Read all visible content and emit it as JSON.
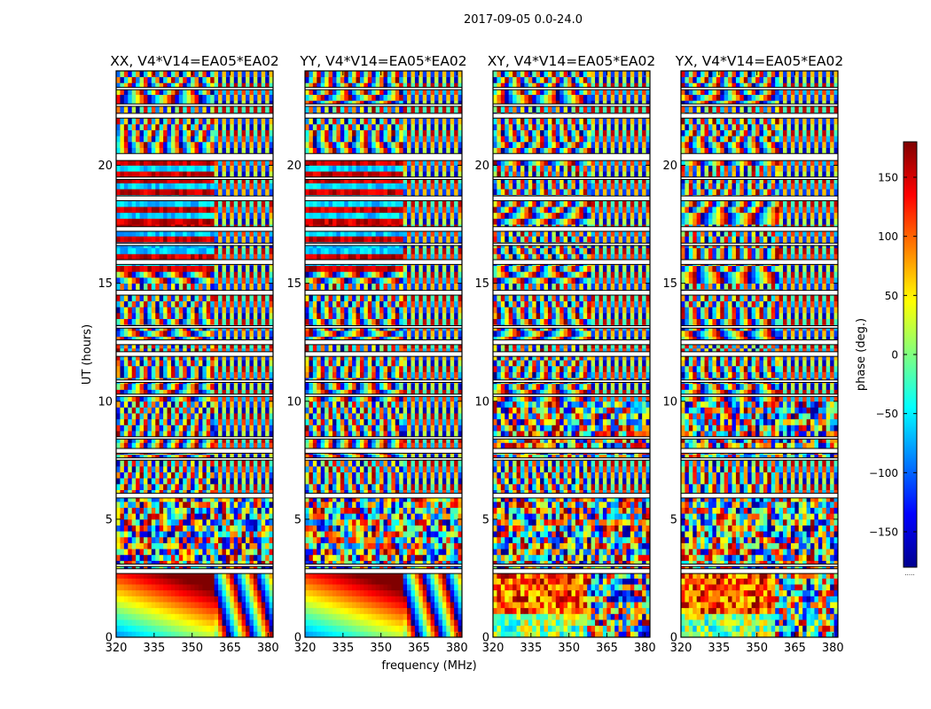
{
  "chart_data": {
    "type": "heatmap",
    "title": "2017-09-05 0.0-24.0",
    "ylabel": "UT (hours)",
    "xlabel": "frequency (MHz)",
    "xlim": [
      320,
      382
    ],
    "ylim": [
      0,
      24
    ],
    "xticks": [
      320,
      335,
      350,
      365,
      380
    ],
    "yticks": [
      0,
      5,
      10,
      15,
      20
    ],
    "colormap": "jet",
    "colorbar": {
      "label": "phase (deg.)",
      "range": [
        -180,
        180
      ],
      "ticks": [
        150,
        100,
        50,
        0,
        -50,
        -100,
        -150
      ],
      "tick_labels": [
        "150",
        "100",
        "50",
        "0",
        "−50",
        "−100",
        "−150"
      ],
      "footer": "....."
    },
    "panels": [
      {
        "title": "XX, V4*V14=EA05*EA02",
        "pol": "XX"
      },
      {
        "title": "YY, V4*V14=EA05*EA02",
        "pol": "YY"
      },
      {
        "title": "XY, V4*V14=EA05*EA02",
        "pol": "XY"
      },
      {
        "title": "YX, V4*V14=EA05*EA02",
        "pol": "YX"
      }
    ],
    "flagged_bands_hours": [
      [
        2.7,
        2.9
      ],
      [
        3.0,
        3.1
      ],
      [
        5.9,
        6.1
      ],
      [
        7.5,
        7.6
      ],
      [
        7.8,
        8.0
      ],
      [
        8.4,
        8.5
      ],
      [
        10.2,
        10.3
      ],
      [
        10.8,
        10.9
      ],
      [
        11.9,
        12.1
      ],
      [
        12.4,
        12.6
      ],
      [
        13.1,
        13.2
      ],
      [
        14.5,
        14.7
      ],
      [
        15.8,
        16.0
      ],
      [
        16.6,
        16.7
      ],
      [
        17.2,
        17.4
      ],
      [
        18.5,
        18.7
      ],
      [
        19.4,
        19.5
      ],
      [
        20.2,
        20.5
      ],
      [
        22.0,
        22.2
      ],
      [
        22.5,
        22.6
      ],
      [
        23.2,
        23.3
      ]
    ]
  }
}
